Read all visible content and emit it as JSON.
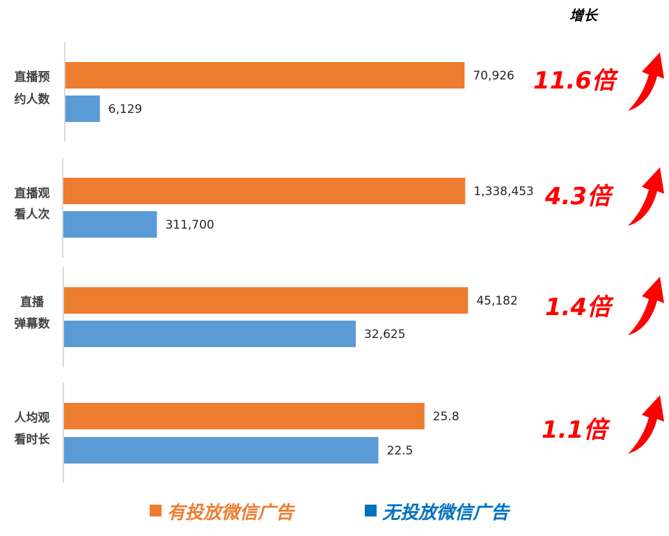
{
  "chart_data": {
    "type": "bar",
    "orientation": "horizontal",
    "header": "增长",
    "categories": [
      {
        "lines": [
          "直播预",
          "约人数"
        ]
      },
      {
        "lines": [
          "直播观",
          "看人次"
        ]
      },
      {
        "lines": [
          "直播",
          "弹幕数"
        ]
      },
      {
        "lines": [
          "人均观",
          "看时长"
        ]
      }
    ],
    "series": [
      {
        "name": "有投放微信广告",
        "color": "#ED7D31",
        "values": [
          70926,
          1338453,
          45182,
          25.8
        ],
        "labels": [
          "70,926",
          "1,338,453",
          "45,182",
          "25.8"
        ]
      },
      {
        "name": "无投放微信广告",
        "color": "#5B9BD5",
        "values": [
          6129,
          311700,
          32625,
          22.5
        ],
        "labels": [
          "6,129",
          "311,700",
          "32,625",
          "22.5"
        ]
      }
    ],
    "growth": [
      "11.6倍",
      "4.3倍",
      "1.4倍",
      "1.1倍"
    ],
    "legend_position": "bottom",
    "legend_text_colors": [
      "#ED7D31",
      "#0070C0"
    ],
    "accent_color": "#FF0000",
    "icon": "up-arrow-icon",
    "panel_axis_max": [
      71500,
      1340000,
      45000,
      28.8
    ]
  }
}
